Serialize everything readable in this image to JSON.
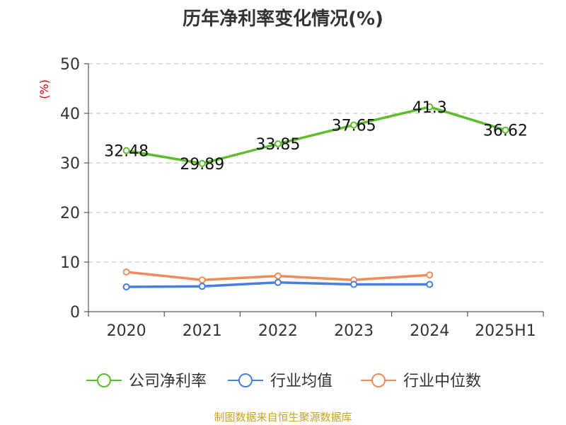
{
  "title": "历年净利率变化情况(%)",
  "footer": "制图数据来自恒生聚源数据库",
  "chart_data": {
    "type": "line",
    "title": "历年净利率变化情况(%)",
    "ylabel": "(%)",
    "xlabel": "",
    "categories": [
      "2020",
      "2021",
      "2022",
      "2023",
      "2024",
      "2025H1"
    ],
    "ylim": [
      0,
      50
    ],
    "yticks": [
      0,
      10,
      20,
      30,
      40,
      50
    ],
    "grid": true,
    "legend_position": "bottom",
    "series": [
      {
        "name": "公司净利率",
        "color": "#5dbe2b",
        "values": [
          32.48,
          29.89,
          33.85,
          37.65,
          41.3,
          36.62
        ],
        "labels": [
          "32.48",
          "29.89",
          "33.85",
          "37.65",
          "41.3",
          "36.62"
        ]
      },
      {
        "name": "行业均值",
        "color": "#4a7de0",
        "values": [
          5.0,
          5.1,
          5.9,
          5.5,
          5.5,
          null
        ]
      },
      {
        "name": "行业中位数",
        "color": "#f08c5a",
        "values": [
          8.0,
          6.4,
          7.2,
          6.4,
          7.4,
          null
        ]
      }
    ]
  }
}
